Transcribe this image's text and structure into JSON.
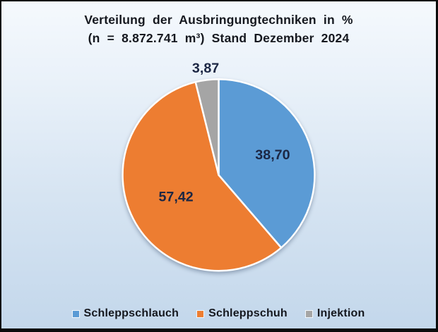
{
  "title": {
    "line1": "Verteilung der Ausbringungtechniken in %",
    "line2": "(n = 8.872.741 m³) Stand Dezember 2024"
  },
  "chart_data": {
    "type": "pie",
    "title": "Verteilung der Ausbringungtechniken in %",
    "subtitle": "(n = 8.872.741 m³) Stand Dezember 2024",
    "unit": "%",
    "categories": [
      "Schleppschlauch",
      "Schleppschuh",
      "Injektion"
    ],
    "values": [
      38.7,
      57.42,
      3.87
    ],
    "labels": [
      "38,70",
      "57,42",
      "3,87"
    ],
    "colors": [
      "#5B9BD5",
      "#ED7D31",
      "#A5A5A5"
    ],
    "label_placement": [
      "inside",
      "inside",
      "outside"
    ],
    "start_angle": "12-oclock",
    "direction": "clockwise",
    "slice_border_color": "#FFFFFF",
    "label_color": "#1C2744",
    "legend_position": "bottom",
    "background": {
      "gradient_top": "#F5F9FD",
      "gradient_bottom": "#C3D7EB",
      "frame_border": "#0B0B0B"
    }
  }
}
